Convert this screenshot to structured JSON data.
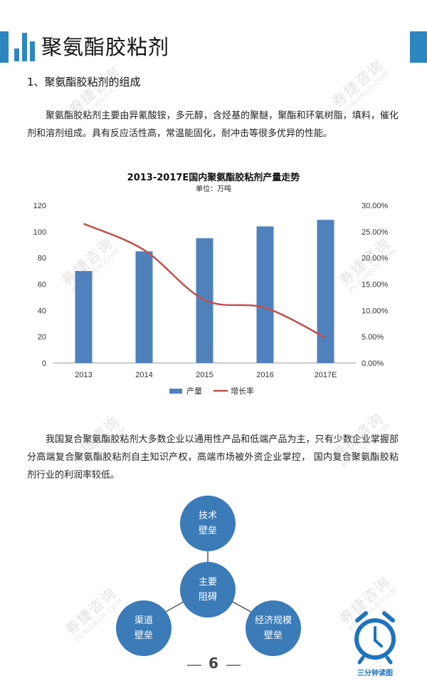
{
  "header": {
    "title": "聚氨酯胶粘剂"
  },
  "section": {
    "heading": "1、聚氨酯胶粘剂的组成"
  },
  "paragraphs": {
    "p1": "聚氨酯胶粘剂主要由异氰酸铵，多元醇，含烃基的聚醚，聚酯和环氧树脂，填料，催化剂和溶剂组成。具有反应活性高，常温能固化，耐冲击等很多优异的性能。",
    "p2": "我国复合聚氨酯胶粘剂大多数企业以通用性产品和低端产品为主，只有少数企业掌握部分高端复合聚氨酯胶粘剂自主知识产权，高端市场被外资企业掌控， 国内复合聚氨酯胶粘剂行业的利润率较低。"
  },
  "chart_data": {
    "type": "bar",
    "title": "2013-2017E国内聚氨酯胶粘剂产量走势",
    "subtitle": "单位：万吨",
    "categories": [
      "2013",
      "2014",
      "2015",
      "2016",
      "2017E"
    ],
    "series": [
      {
        "name": "产量",
        "type": "bar",
        "axis": "left",
        "values": [
          70,
          85,
          95,
          104,
          109
        ],
        "color": "#4f81bd"
      },
      {
        "name": "增长率",
        "type": "line",
        "axis": "right",
        "values": [
          26.5,
          21.5,
          12.0,
          10.5,
          4.8
        ],
        "color": "#c0504d"
      }
    ],
    "ylim": [
      0,
      120
    ],
    "y_ticks": [
      "0",
      "20",
      "40",
      "60",
      "80",
      "100",
      "120"
    ],
    "y2lim": [
      0,
      30
    ],
    "y2_ticks": [
      "0.00%",
      "5.00%",
      "10.00%",
      "15.00%",
      "20.00%",
      "25.00%",
      "30.00%"
    ],
    "legend_position": "bottom",
    "grid": false
  },
  "diagram": {
    "center": [
      "主要",
      "阻碍"
    ],
    "top": [
      "技术",
      "壁垒"
    ],
    "left": [
      "渠道",
      "壁垒"
    ],
    "right": [
      "经济规模",
      "壁垒"
    ]
  },
  "footer": {
    "page_number": "6",
    "badge_label": "三分钟读图"
  },
  "watermark": {
    "cn": "券捷咨询",
    "en": "PUWORLD.COM"
  },
  "colors": {
    "accent": "#2e86c1",
    "bar": "#4f81bd",
    "line": "#c0504d",
    "circle": "#3a7bb8"
  }
}
